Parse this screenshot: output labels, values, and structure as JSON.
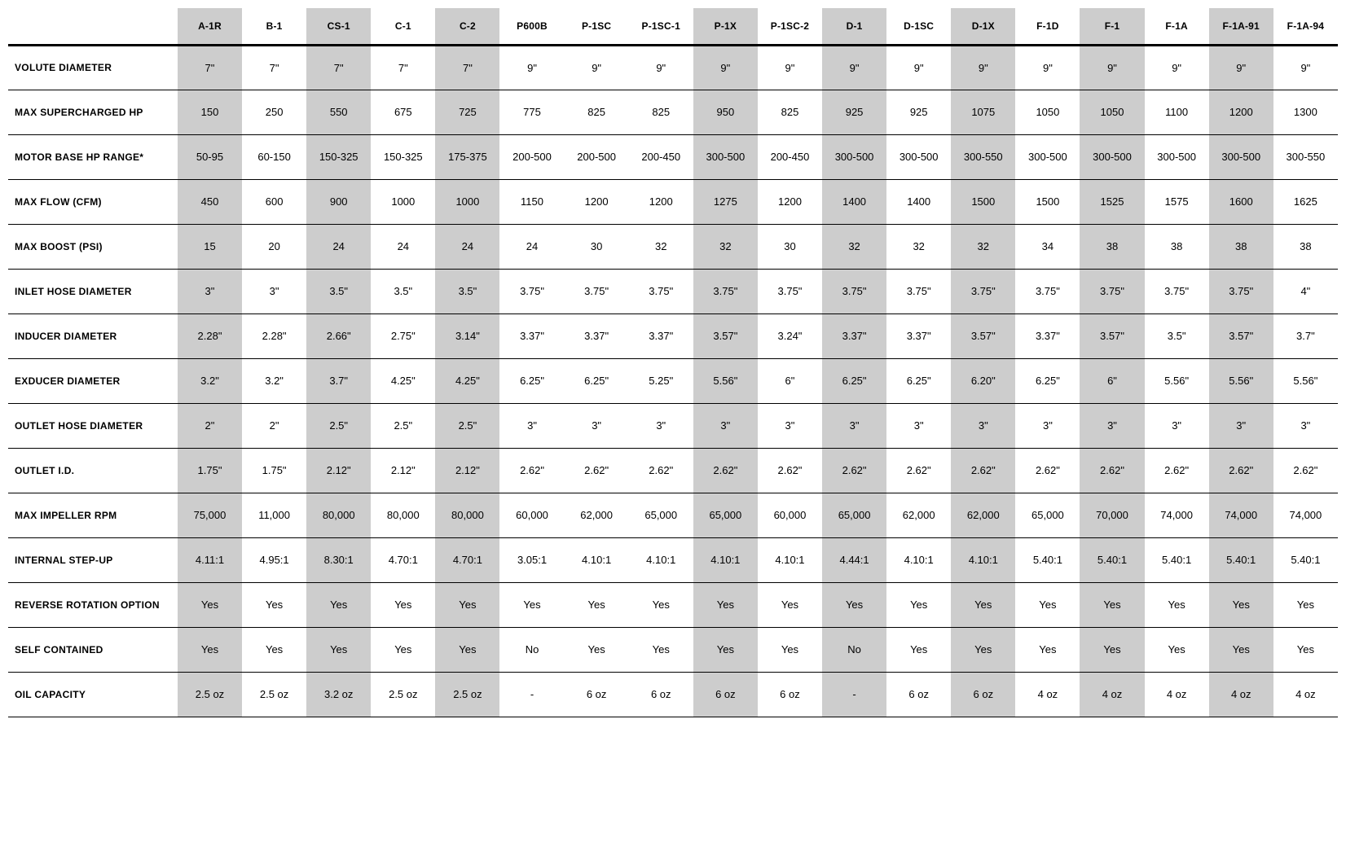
{
  "table": {
    "background_color": "#ffffff",
    "shaded_color": "#cdcdcd",
    "text_color": "#000000",
    "border_color": "#000000",
    "header_fontsize": 12,
    "cell_fontsize": 13,
    "label_fontsize": 12,
    "shaded_columns": [
      0,
      2,
      4,
      8,
      10,
      12,
      14,
      16
    ],
    "columns": [
      "A-1R",
      "B-1",
      "CS-1",
      "C-1",
      "C-2",
      "P600B",
      "P-1SC",
      "P-1SC-1",
      "P-1X",
      "P-1SC-2",
      "D-1",
      "D-1SC",
      "D-1X",
      "F-1D",
      "F-1",
      "F-1A",
      "F-1A-91",
      "F-1A-94"
    ],
    "rows": [
      {
        "label": "VOLUTE DIAMETER",
        "cells": [
          "7\"",
          "7\"",
          "7\"",
          "7\"",
          "7\"",
          "9\"",
          "9\"",
          "9\"",
          "9\"",
          "9\"",
          "9\"",
          "9\"",
          "9\"",
          "9\"",
          "9\"",
          "9\"",
          "9\"",
          "9\""
        ]
      },
      {
        "label": "MAX SUPERCHARGED HP",
        "cells": [
          "150",
          "250",
          "550",
          "675",
          "725",
          "775",
          "825",
          "825",
          "950",
          "825",
          "925",
          "925",
          "1075",
          "1050",
          "1050",
          "1100",
          "1200",
          "1300"
        ]
      },
      {
        "label": "MOTOR BASE HP RANGE*",
        "cells": [
          "50-95",
          "60-150",
          "150-325",
          "150-325",
          "175-375",
          "200-500",
          "200-500",
          "200-450",
          "300-500",
          "200-450",
          "300-500",
          "300-500",
          "300-550",
          "300-500",
          "300-500",
          "300-500",
          "300-500",
          "300-550"
        ]
      },
      {
        "label": "MAX FLOW (CFM)",
        "cells": [
          "450",
          "600",
          "900",
          "1000",
          "1000",
          "1150",
          "1200",
          "1200",
          "1275",
          "1200",
          "1400",
          "1400",
          "1500",
          "1500",
          "1525",
          "1575",
          "1600",
          "1625"
        ]
      },
      {
        "label": "MAX BOOST (PSI)",
        "cells": [
          "15",
          "20",
          "24",
          "24",
          "24",
          "24",
          "30",
          "32",
          "32",
          "30",
          "32",
          "32",
          "32",
          "34",
          "38",
          "38",
          "38",
          "38"
        ]
      },
      {
        "label": "INLET HOSE DIAMETER",
        "cells": [
          "3\"",
          "3\"",
          "3.5\"",
          "3.5\"",
          "3.5\"",
          "3.75\"",
          "3.75\"",
          "3.75\"",
          "3.75\"",
          "3.75\"",
          "3.75\"",
          "3.75\"",
          "3.75\"",
          "3.75\"",
          "3.75\"",
          "3.75\"",
          "3.75\"",
          "4\""
        ]
      },
      {
        "label": "INDUCER DIAMETER",
        "cells": [
          "2.28\"",
          "2.28\"",
          "2.66\"",
          "2.75\"",
          "3.14\"",
          "3.37\"",
          "3.37\"",
          "3.37\"",
          "3.57\"",
          "3.24\"",
          "3.37\"",
          "3.37\"",
          "3.57\"",
          "3.37\"",
          "3.57\"",
          "3.5\"",
          "3.57\"",
          "3.7\""
        ]
      },
      {
        "label": "EXDUCER DIAMETER",
        "cells": [
          "3.2\"",
          "3.2\"",
          "3.7\"",
          "4.25\"",
          "4.25\"",
          "6.25\"",
          "6.25\"",
          "5.25\"",
          "5.56\"",
          "6\"",
          "6.25\"",
          "6.25\"",
          "6.20\"",
          "6.25\"",
          "6\"",
          "5.56\"",
          "5.56\"",
          "5.56\""
        ]
      },
      {
        "label": "OUTLET HOSE DIAMETER",
        "cells": [
          "2\"",
          "2\"",
          "2.5\"",
          "2.5\"",
          "2.5\"",
          "3\"",
          "3\"",
          "3\"",
          "3\"",
          "3\"",
          "3\"",
          "3\"",
          "3\"",
          "3\"",
          "3\"",
          "3\"",
          "3\"",
          "3\""
        ]
      },
      {
        "label": "OUTLET I.D.",
        "cells": [
          "1.75\"",
          "1.75\"",
          "2.12\"",
          "2.12\"",
          "2.12\"",
          "2.62\"",
          "2.62\"",
          "2.62\"",
          "2.62\"",
          "2.62\"",
          "2.62\"",
          "2.62\"",
          "2.62\"",
          "2.62\"",
          "2.62\"",
          "2.62\"",
          "2.62\"",
          "2.62\""
        ]
      },
      {
        "label": "MAX IMPELLER RPM",
        "cells": [
          "75,000",
          "11,000",
          "80,000",
          "80,000",
          "80,000",
          "60,000",
          "62,000",
          "65,000",
          "65,000",
          "60,000",
          "65,000",
          "62,000",
          "62,000",
          "65,000",
          "70,000",
          "74,000",
          "74,000",
          "74,000"
        ]
      },
      {
        "label": "INTERNAL STEP-UP",
        "cells": [
          "4.11:1",
          "4.95:1",
          "8.30:1",
          "4.70:1",
          "4.70:1",
          "3.05:1",
          "4.10:1",
          "4.10:1",
          "4.10:1",
          "4.10:1",
          "4.44:1",
          "4.10:1",
          "4.10:1",
          "5.40:1",
          "5.40:1",
          "5.40:1",
          "5.40:1",
          "5.40:1"
        ]
      },
      {
        "label": "REVERSE ROTATION OPTION",
        "cells": [
          "Yes",
          "Yes",
          "Yes",
          "Yes",
          "Yes",
          "Yes",
          "Yes",
          "Yes",
          "Yes",
          "Yes",
          "Yes",
          "Yes",
          "Yes",
          "Yes",
          "Yes",
          "Yes",
          "Yes",
          "Yes"
        ]
      },
      {
        "label": "SELF CONTAINED",
        "cells": [
          "Yes",
          "Yes",
          "Yes",
          "Yes",
          "Yes",
          "No",
          "Yes",
          "Yes",
          "Yes",
          "Yes",
          "No",
          "Yes",
          "Yes",
          "Yes",
          "Yes",
          "Yes",
          "Yes",
          "Yes"
        ]
      },
      {
        "label": "OIL CAPACITY",
        "cells": [
          "2.5 oz",
          "2.5 oz",
          "3.2 oz",
          "2.5 oz",
          "2.5 oz",
          "-",
          "6 oz",
          "6 oz",
          "6 oz",
          "6 oz",
          "-",
          "6 oz",
          "6 oz",
          "4 oz",
          "4 oz",
          "4 oz",
          "4 oz",
          "4 oz"
        ]
      }
    ]
  }
}
